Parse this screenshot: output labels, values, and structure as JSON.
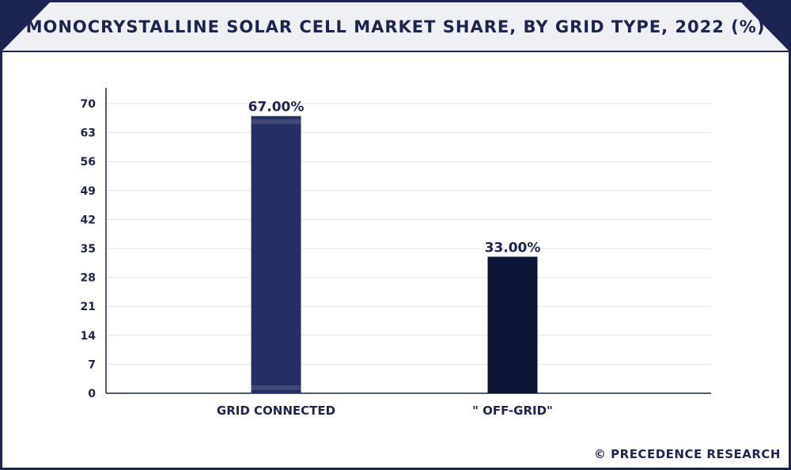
{
  "chart_data": {
    "type": "bar",
    "title": "MONOCRYSTALLINE SOLAR CELL MARKET SHARE, BY GRID TYPE, 2022 (%)",
    "categories": [
      "GRID CONNECTED",
      "\"  OFF-GRID\""
    ],
    "values": [
      67.0,
      33.0
    ],
    "value_labels": [
      "67.00%",
      "33.00%"
    ],
    "xlabel": "",
    "ylabel": "",
    "ylim": [
      0,
      70
    ],
    "yticks": [
      0,
      7,
      14,
      21,
      28,
      35,
      42,
      49,
      56,
      63,
      70
    ],
    "grid": true,
    "legend": "none",
    "bar_colors": [
      "#252f65",
      "#0c1535"
    ]
  },
  "footer": {
    "credit": "© PRECEDENCE RESEARCH"
  },
  "colors": {
    "accent": "#1c2450"
  }
}
